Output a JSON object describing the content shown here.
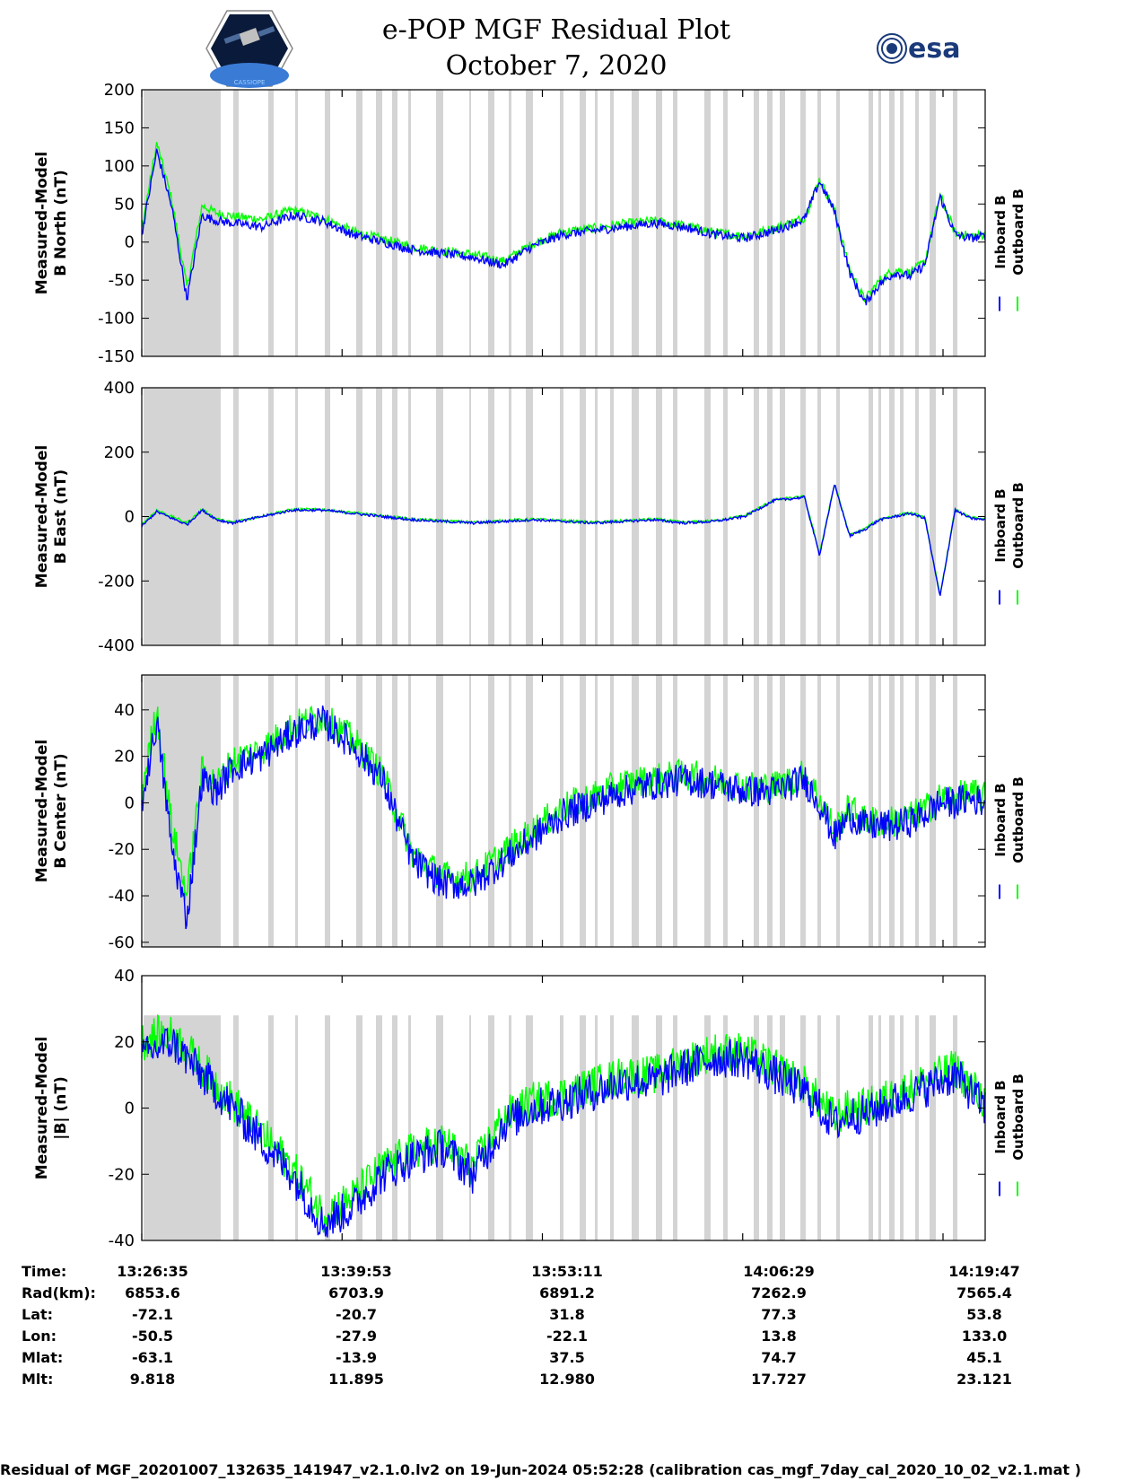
{
  "title": {
    "line1": "e-POP MGF Residual Plot",
    "line2": "October 7, 2020"
  },
  "logos": {
    "left_text": "CASSIOPE",
    "right_text": "esa"
  },
  "colors": {
    "inboard": "#0000ff",
    "outboard": "#00ff00",
    "shade": "#d4d4d4",
    "axis": "#000000"
  },
  "legend": {
    "inboard": "Inboard B",
    "outboard": "Outboard B"
  },
  "chart_data": [
    {
      "type": "line",
      "ylabel_line1": "Measured-Model",
      "ylabel_line2": "B North (nT)",
      "ylim": [
        -150,
        200
      ],
      "yticks": [
        200,
        150,
        100,
        50,
        0,
        -50,
        -100,
        -150
      ],
      "x_minutes": [
        0,
        1,
        2,
        3,
        4,
        5,
        6,
        8,
        10,
        12,
        14,
        16,
        18,
        20,
        22,
        24,
        26,
        28,
        30,
        32,
        34,
        36,
        38,
        40,
        42,
        44,
        45,
        46,
        47,
        48,
        49,
        50,
        51,
        52,
        53,
        54,
        55,
        56
      ],
      "series": [
        {
          "name": "Inboard B",
          "values": [
            10,
            120,
            45,
            -75,
            35,
            28,
            25,
            20,
            35,
            28,
            10,
            0,
            -10,
            -15,
            -20,
            -30,
            -5,
            10,
            15,
            20,
            25,
            20,
            10,
            5,
            15,
            30,
            80,
            40,
            -40,
            -80,
            -55,
            -40,
            -45,
            -30,
            60,
            10,
            5,
            8
          ]
        },
        {
          "name": "Outboard B",
          "values": [
            18,
            130,
            55,
            -60,
            48,
            38,
            34,
            30,
            42,
            32,
            14,
            4,
            -6,
            -12,
            -16,
            -25,
            -2,
            14,
            18,
            24,
            28,
            22,
            13,
            8,
            18,
            32,
            82,
            42,
            -36,
            -76,
            -50,
            -36,
            -40,
            -26,
            62,
            12,
            8,
            10
          ]
        }
      ]
    },
    {
      "type": "line",
      "ylabel_line1": "Measured-Model",
      "ylabel_line2": "B East (nT)",
      "ylim": [
        -400,
        400
      ],
      "yticks": [
        400,
        200,
        0,
        -200,
        -400
      ],
      "x_minutes": [
        0,
        1,
        2,
        3,
        4,
        5,
        6,
        8,
        10,
        12,
        14,
        16,
        18,
        20,
        22,
        24,
        26,
        28,
        30,
        32,
        34,
        36,
        38,
        40,
        42,
        44,
        45,
        46,
        47,
        48,
        49,
        50,
        51,
        52,
        53,
        54,
        55,
        56
      ],
      "series": [
        {
          "name": "Inboard B",
          "values": [
            -30,
            15,
            -5,
            -25,
            20,
            -10,
            -20,
            0,
            20,
            20,
            10,
            0,
            -10,
            -15,
            -20,
            -15,
            -10,
            -15,
            -20,
            -15,
            -10,
            -20,
            -15,
            0,
            50,
            60,
            -120,
            100,
            -60,
            -40,
            -10,
            0,
            10,
            -5,
            -250,
            20,
            -5,
            -10
          ]
        },
        {
          "name": "Outboard B",
          "values": [
            -25,
            20,
            0,
            -20,
            22,
            -8,
            -18,
            2,
            22,
            22,
            12,
            2,
            -8,
            -13,
            -18,
            -13,
            -8,
            -13,
            -18,
            -13,
            -8,
            -18,
            -13,
            2,
            52,
            62,
            -115,
            102,
            -58,
            -38,
            -8,
            2,
            12,
            -3,
            -245,
            22,
            -3,
            -8
          ]
        }
      ]
    },
    {
      "type": "line",
      "ylabel_line1": "Measured-Model",
      "ylabel_line2": "B Center (nT)",
      "ylim": [
        -62,
        55
      ],
      "yticks": [
        40,
        20,
        0,
        -20,
        -40,
        -60
      ],
      "x_minutes": [
        0,
        1,
        2,
        3,
        4,
        5,
        6,
        8,
        10,
        12,
        14,
        16,
        18,
        20,
        22,
        24,
        26,
        28,
        30,
        32,
        34,
        36,
        38,
        40,
        42,
        44,
        45,
        46,
        47,
        48,
        49,
        50,
        51,
        52,
        53,
        54,
        55,
        56
      ],
      "series": [
        {
          "name": "Inboard B",
          "values": [
            0,
            35,
            -20,
            -50,
            10,
            5,
            15,
            20,
            30,
            35,
            25,
            10,
            -25,
            -35,
            -35,
            -25,
            -15,
            -5,
            0,
            5,
            8,
            10,
            8,
            5,
            5,
            10,
            0,
            -15,
            -5,
            -10,
            -10,
            -10,
            -8,
            -5,
            0,
            0,
            2,
            0
          ]
        },
        {
          "name": "Outboard B",
          "values": [
            5,
            40,
            -10,
            -40,
            14,
            8,
            18,
            23,
            33,
            37,
            27,
            12,
            -22,
            -32,
            -32,
            -22,
            -12,
            -2,
            3,
            8,
            10,
            12,
            10,
            7,
            7,
            12,
            2,
            -12,
            -2,
            -8,
            -8,
            -8,
            -6,
            -3,
            2,
            2,
            4,
            2
          ]
        }
      ]
    },
    {
      "type": "line",
      "ylabel_line1": "Measured-Model",
      "ylabel_line2": "|B| (nT)",
      "ylim": [
        -40,
        40
      ],
      "yticks": [
        40,
        20,
        0,
        -20,
        -40
      ],
      "x_minutes": [
        0,
        1,
        2,
        3,
        4,
        5,
        6,
        8,
        10,
        12,
        14,
        16,
        18,
        20,
        22,
        24,
        26,
        28,
        30,
        32,
        34,
        36,
        38,
        40,
        42,
        44,
        45,
        46,
        47,
        48,
        49,
        50,
        51,
        52,
        53,
        54,
        55,
        56
      ],
      "series": [
        {
          "name": "Inboard B",
          "values": [
            15,
            18,
            20,
            15,
            10,
            5,
            0,
            -10,
            -20,
            -35,
            -30,
            -20,
            -15,
            -12,
            -20,
            -5,
            0,
            2,
            5,
            8,
            8,
            12,
            15,
            15,
            10,
            5,
            0,
            -5,
            -2,
            -2,
            0,
            2,
            4,
            6,
            8,
            10,
            5,
            0
          ]
        },
        {
          "name": "Outboard B",
          "values": [
            20,
            22,
            22,
            18,
            12,
            7,
            2,
            -8,
            -18,
            -32,
            -27,
            -18,
            -13,
            -10,
            -18,
            -3,
            2,
            4,
            7,
            10,
            10,
            14,
            17,
            17,
            12,
            7,
            2,
            -3,
            0,
            0,
            2,
            4,
            6,
            8,
            10,
            12,
            7,
            2
          ]
        }
      ]
    }
  ],
  "info_table": {
    "labels": [
      "Time:",
      "Rad(km):",
      "Lat:",
      "Lon:",
      "Mlat:",
      "Mlt:"
    ],
    "columns": [
      [
        "13:26:35",
        "6853.6",
        "-72.1",
        "-50.5",
        "-63.1",
        "9.818"
      ],
      [
        "13:39:53",
        "6703.9",
        "-20.7",
        "-27.9",
        "-13.9",
        "11.895"
      ],
      [
        "13:53:11",
        "6891.2",
        "31.8",
        "-22.1",
        "37.5",
        "12.980"
      ],
      [
        "14:06:29",
        "7262.9",
        "77.3",
        "13.8",
        "74.7",
        "17.727"
      ],
      [
        "14:19:47",
        "7565.4",
        "53.8",
        "133.0",
        "45.1",
        "23.121"
      ]
    ]
  },
  "footer": "Residual of MGF_20201007_132635_141947_v2.1.0.lv2 on 19-Jun-2024 05:52:28 (calibration cas_mgf_7day_cal_2020_10_02_v2.1.mat )"
}
